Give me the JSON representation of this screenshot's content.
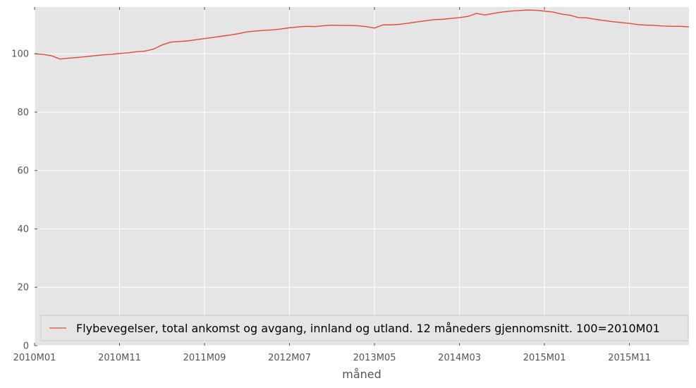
{
  "chart_data": {
    "type": "line",
    "xlabel": "måned",
    "ylabel": "",
    "ylim": [
      0,
      116
    ],
    "yticks": [
      0,
      20,
      40,
      60,
      80,
      100
    ],
    "xticks": [
      "2010M01",
      "2010M11",
      "2011M09",
      "2012M07",
      "2013M05",
      "2014M03",
      "2015M01",
      "2015M11"
    ],
    "x_start": "2010M01",
    "grid": true,
    "legend_position": "lower left",
    "colors": {
      "background": "#e5e5e5",
      "grid": "#ffffff",
      "line": "#e24a33"
    },
    "series": [
      {
        "name": "Flybevegelser, total ankomst og avgang, innland og utland. 12 måneders gjennomsnitt. 100=2010M01",
        "values": [
          100.0,
          99.8,
          99.3,
          98.2,
          98.5,
          98.7,
          99.0,
          99.3,
          99.6,
          99.8,
          100.1,
          100.3,
          100.7,
          100.9,
          101.6,
          103.0,
          104.0,
          104.2,
          104.4,
          104.8,
          105.2,
          105.6,
          106.0,
          106.4,
          106.9,
          107.5,
          107.8,
          108.0,
          108.2,
          108.5,
          108.9,
          109.2,
          109.4,
          109.3,
          109.6,
          109.8,
          109.7,
          109.7,
          109.6,
          109.3,
          108.8,
          109.9,
          109.9,
          110.1,
          110.5,
          110.9,
          111.3,
          111.7,
          111.8,
          112.1,
          112.4,
          112.8,
          113.8,
          113.3,
          113.8,
          114.3,
          114.6,
          114.8,
          115.0,
          114.9,
          114.6,
          114.3,
          113.6,
          113.2,
          112.4,
          112.3,
          111.8,
          111.4,
          111.0,
          110.7,
          110.4,
          110.0,
          109.8,
          109.7,
          109.5,
          109.4,
          109.4,
          109.2
        ]
      }
    ]
  }
}
